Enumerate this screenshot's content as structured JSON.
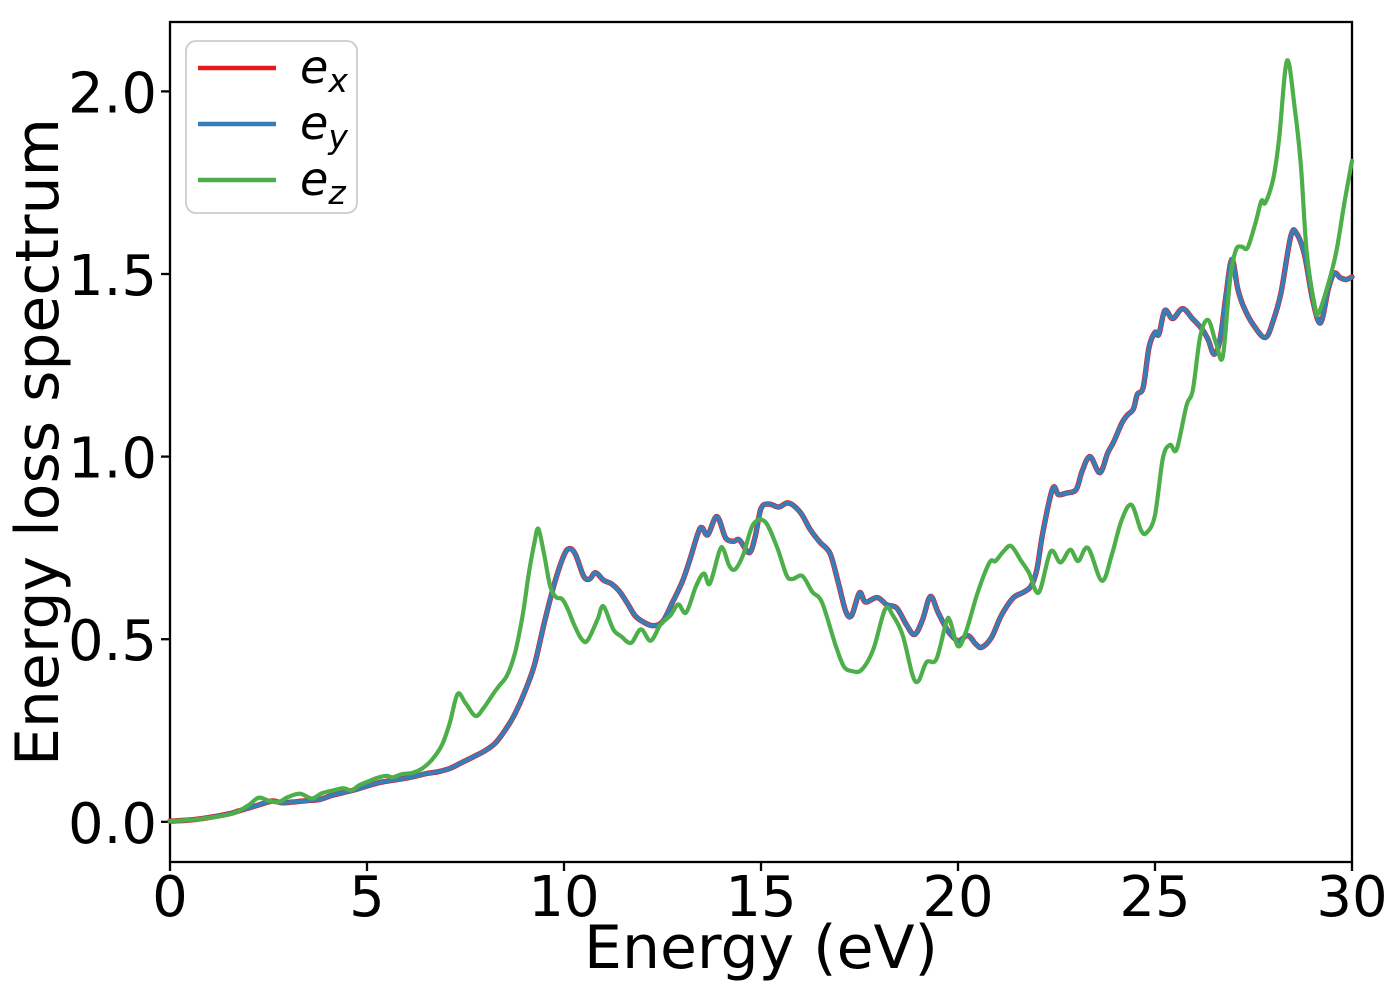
{
  "figure": {
    "background": "#ffffff",
    "legend_border_color": "#cccccc",
    "legend_background": "#ffffff",
    "axis_color": "#000000"
  },
  "chart_data": {
    "type": "line",
    "title": "",
    "xlabel": "Energy (eV)",
    "ylabel": "Energy loss spectrum",
    "xlim": [
      0,
      30
    ],
    "ylim": [
      -0.11,
      2.19
    ],
    "x_ticks": [
      0,
      5,
      10,
      15,
      20,
      25,
      30
    ],
    "x_tick_labels": [
      "0",
      "5",
      "10",
      "15",
      "20",
      "25",
      "30"
    ],
    "y_ticks": [
      0.0,
      0.5,
      1.0,
      1.5,
      2.0
    ],
    "y_tick_labels": [
      "0.0",
      "0.5",
      "1.0",
      "1.5",
      "2.0"
    ],
    "grid": false,
    "legend_position": "upper-left",
    "series": [
      {
        "name": "e_x",
        "label_base": "e",
        "label_sub": "x",
        "color": "#e41a1c",
        "points_same_as": "e_y",
        "note": "coincides with e_y; drawn first so it is hidden beneath the blue curve except tiny fringes at sharp peaks"
      },
      {
        "name": "e_y",
        "label_base": "e",
        "label_sub": "y",
        "color": "#377eb8",
        "points": [
          [
            0,
            0.002
          ],
          [
            0.5,
            0.005
          ],
          [
            1,
            0.012
          ],
          [
            1.5,
            0.022
          ],
          [
            1.75,
            0.03
          ],
          [
            2,
            0.038
          ],
          [
            2.3,
            0.048
          ],
          [
            2.6,
            0.057
          ],
          [
            2.85,
            0.052
          ],
          [
            3.1,
            0.054
          ],
          [
            3.5,
            0.058
          ],
          [
            3.8,
            0.061
          ],
          [
            4.1,
            0.072
          ],
          [
            4.4,
            0.08
          ],
          [
            4.7,
            0.088
          ],
          [
            5,
            0.098
          ],
          [
            5.3,
            0.107
          ],
          [
            5.6,
            0.113
          ],
          [
            5.9,
            0.118
          ],
          [
            6.2,
            0.124
          ],
          [
            6.5,
            0.132
          ],
          [
            6.8,
            0.137
          ],
          [
            7.1,
            0.146
          ],
          [
            7.4,
            0.162
          ],
          [
            7.7,
            0.178
          ],
          [
            8,
            0.195
          ],
          [
            8.25,
            0.215
          ],
          [
            8.5,
            0.25
          ],
          [
            8.75,
            0.295
          ],
          [
            9,
            0.355
          ],
          [
            9.25,
            0.43
          ],
          [
            9.5,
            0.545
          ],
          [
            9.75,
            0.65
          ],
          [
            10,
            0.73
          ],
          [
            10.15,
            0.748
          ],
          [
            10.3,
            0.73
          ],
          [
            10.5,
            0.672
          ],
          [
            10.65,
            0.665
          ],
          [
            10.8,
            0.682
          ],
          [
            11,
            0.662
          ],
          [
            11.2,
            0.652
          ],
          [
            11.4,
            0.632
          ],
          [
            11.6,
            0.6
          ],
          [
            11.8,
            0.565
          ],
          [
            12,
            0.548
          ],
          [
            12.25,
            0.537
          ],
          [
            12.5,
            0.548
          ],
          [
            12.75,
            0.6
          ],
          [
            13,
            0.657
          ],
          [
            13.2,
            0.72
          ],
          [
            13.4,
            0.79
          ],
          [
            13.5,
            0.806
          ],
          [
            13.65,
            0.786
          ],
          [
            13.88,
            0.836
          ],
          [
            14.1,
            0.778
          ],
          [
            14.3,
            0.768
          ],
          [
            14.45,
            0.772
          ],
          [
            14.7,
            0.737
          ],
          [
            14.85,
            0.78
          ],
          [
            15,
            0.858
          ],
          [
            15.2,
            0.87
          ],
          [
            15.45,
            0.862
          ],
          [
            15.7,
            0.873
          ],
          [
            16,
            0.847
          ],
          [
            16.25,
            0.8
          ],
          [
            16.5,
            0.765
          ],
          [
            16.75,
            0.735
          ],
          [
            16.95,
            0.66
          ],
          [
            17.15,
            0.577
          ],
          [
            17.3,
            0.565
          ],
          [
            17.5,
            0.627
          ],
          [
            17.65,
            0.602
          ],
          [
            17.95,
            0.614
          ],
          [
            18.2,
            0.594
          ],
          [
            18.45,
            0.585
          ],
          [
            18.7,
            0.538
          ],
          [
            18.9,
            0.513
          ],
          [
            19.1,
            0.553
          ],
          [
            19.3,
            0.617
          ],
          [
            19.5,
            0.572
          ],
          [
            19.75,
            0.522
          ],
          [
            20,
            0.496
          ],
          [
            20.25,
            0.51
          ],
          [
            20.45,
            0.487
          ],
          [
            20.6,
            0.478
          ],
          [
            20.85,
            0.505
          ],
          [
            21.1,
            0.565
          ],
          [
            21.4,
            0.613
          ],
          [
            21.65,
            0.628
          ],
          [
            21.85,
            0.645
          ],
          [
            22,
            0.69
          ],
          [
            22.15,
            0.79
          ],
          [
            22.4,
            0.912
          ],
          [
            22.55,
            0.896
          ],
          [
            22.75,
            0.9
          ],
          [
            23,
            0.91
          ],
          [
            23.15,
            0.96
          ],
          [
            23.35,
            1.0
          ],
          [
            23.6,
            0.956
          ],
          [
            23.8,
            1.01
          ],
          [
            23.95,
            1.04
          ],
          [
            24.16,
            1.092
          ],
          [
            24.3,
            1.114
          ],
          [
            24.45,
            1.13
          ],
          [
            24.55,
            1.17
          ],
          [
            24.7,
            1.19
          ],
          [
            24.85,
            1.3
          ],
          [
            25,
            1.34
          ],
          [
            25.1,
            1.335
          ],
          [
            25.25,
            1.4
          ],
          [
            25.45,
            1.378
          ],
          [
            25.7,
            1.405
          ],
          [
            25.95,
            1.378
          ],
          [
            26.2,
            1.348
          ],
          [
            26.35,
            1.32
          ],
          [
            26.5,
            1.28
          ],
          [
            26.65,
            1.32
          ],
          [
            26.8,
            1.44
          ],
          [
            26.95,
            1.54
          ],
          [
            27.1,
            1.46
          ],
          [
            27.25,
            1.41
          ],
          [
            27.5,
            1.36
          ],
          [
            27.8,
            1.326
          ],
          [
            28,
            1.372
          ],
          [
            28.2,
            1.45
          ],
          [
            28.45,
            1.605
          ],
          [
            28.6,
            1.61
          ],
          [
            28.8,
            1.55
          ],
          [
            29,
            1.43
          ],
          [
            29.2,
            1.366
          ],
          [
            29.4,
            1.46
          ],
          [
            29.55,
            1.502
          ],
          [
            29.7,
            1.49
          ],
          [
            29.85,
            1.485
          ],
          [
            30,
            1.492
          ]
        ]
      },
      {
        "name": "e_z",
        "label_base": "e",
        "label_sub": "z",
        "color": "#4daf4a",
        "points": [
          [
            0,
            0.002
          ],
          [
            0.5,
            0.005
          ],
          [
            1,
            0.011
          ],
          [
            1.5,
            0.02
          ],
          [
            1.75,
            0.03
          ],
          [
            2,
            0.046
          ],
          [
            2.25,
            0.066
          ],
          [
            2.5,
            0.058
          ],
          [
            2.75,
            0.054
          ],
          [
            3,
            0.068
          ],
          [
            3.3,
            0.077
          ],
          [
            3.6,
            0.064
          ],
          [
            3.85,
            0.078
          ],
          [
            4.1,
            0.085
          ],
          [
            4.4,
            0.092
          ],
          [
            4.6,
            0.086
          ],
          [
            4.8,
            0.1
          ],
          [
            5,
            0.109
          ],
          [
            5.25,
            0.12
          ],
          [
            5.5,
            0.126
          ],
          [
            5.65,
            0.122
          ],
          [
            5.9,
            0.131
          ],
          [
            6.15,
            0.134
          ],
          [
            6.4,
            0.146
          ],
          [
            6.65,
            0.17
          ],
          [
            6.9,
            0.21
          ],
          [
            7.1,
            0.27
          ],
          [
            7.3,
            0.35
          ],
          [
            7.5,
            0.325
          ],
          [
            7.75,
            0.29
          ],
          [
            7.95,
            0.31
          ],
          [
            8.2,
            0.35
          ],
          [
            8.35,
            0.372
          ],
          [
            8.55,
            0.4
          ],
          [
            8.75,
            0.46
          ],
          [
            8.95,
            0.565
          ],
          [
            9.1,
            0.675
          ],
          [
            9.25,
            0.765
          ],
          [
            9.35,
            0.802
          ],
          [
            9.5,
            0.73
          ],
          [
            9.65,
            0.645
          ],
          [
            9.8,
            0.615
          ],
          [
            9.95,
            0.61
          ],
          [
            10.1,
            0.582
          ],
          [
            10.25,
            0.541
          ],
          [
            10.45,
            0.5
          ],
          [
            10.6,
            0.497
          ],
          [
            10.85,
            0.554
          ],
          [
            11,
            0.59
          ],
          [
            11.25,
            0.527
          ],
          [
            11.45,
            0.508
          ],
          [
            11.7,
            0.49
          ],
          [
            11.95,
            0.527
          ],
          [
            12.2,
            0.496
          ],
          [
            12.45,
            0.54
          ],
          [
            12.7,
            0.565
          ],
          [
            12.9,
            0.595
          ],
          [
            13.1,
            0.573
          ],
          [
            13.35,
            0.645
          ],
          [
            13.55,
            0.68
          ],
          [
            13.7,
            0.652
          ],
          [
            13.95,
            0.743
          ],
          [
            14.05,
            0.745
          ],
          [
            14.2,
            0.7
          ],
          [
            14.35,
            0.692
          ],
          [
            14.55,
            0.732
          ],
          [
            14.8,
            0.814
          ],
          [
            15.1,
            0.822
          ],
          [
            15.4,
            0.754
          ],
          [
            15.65,
            0.675
          ],
          [
            15.8,
            0.665
          ],
          [
            16.05,
            0.673
          ],
          [
            16.3,
            0.63
          ],
          [
            16.55,
            0.6
          ],
          [
            16.9,
            0.481
          ],
          [
            17.1,
            0.426
          ],
          [
            17.3,
            0.413
          ],
          [
            17.55,
            0.416
          ],
          [
            17.85,
            0.472
          ],
          [
            18.15,
            0.582
          ],
          [
            18.35,
            0.565
          ],
          [
            18.6,
            0.51
          ],
          [
            18.85,
            0.4
          ],
          [
            19,
            0.386
          ],
          [
            19.2,
            0.437
          ],
          [
            19.45,
            0.445
          ],
          [
            19.7,
            0.546
          ],
          [
            19.8,
            0.55
          ],
          [
            20,
            0.481
          ],
          [
            20.2,
            0.52
          ],
          [
            20.5,
            0.628
          ],
          [
            20.8,
            0.71
          ],
          [
            20.95,
            0.714
          ],
          [
            21.15,
            0.74
          ],
          [
            21.35,
            0.755
          ],
          [
            21.6,
            0.715
          ],
          [
            21.8,
            0.682
          ],
          [
            22.05,
            0.628
          ],
          [
            22.35,
            0.74
          ],
          [
            22.6,
            0.71
          ],
          [
            22.85,
            0.745
          ],
          [
            23.05,
            0.714
          ],
          [
            23.3,
            0.75
          ],
          [
            23.65,
            0.66
          ],
          [
            23.9,
            0.73
          ],
          [
            24.15,
            0.825
          ],
          [
            24.4,
            0.868
          ],
          [
            24.65,
            0.797
          ],
          [
            24.8,
            0.793
          ],
          [
            25,
            0.84
          ],
          [
            25.2,
            0.996
          ],
          [
            25.38,
            1.032
          ],
          [
            25.55,
            1.02
          ],
          [
            25.8,
            1.14
          ],
          [
            25.96,
            1.182
          ],
          [
            26.15,
            1.33
          ],
          [
            26.35,
            1.374
          ],
          [
            26.55,
            1.31
          ],
          [
            26.72,
            1.274
          ],
          [
            26.9,
            1.48
          ],
          [
            27.05,
            1.565
          ],
          [
            27.2,
            1.575
          ],
          [
            27.35,
            1.572
          ],
          [
            27.55,
            1.64
          ],
          [
            27.7,
            1.7
          ],
          [
            27.8,
            1.695
          ],
          [
            28,
            1.76
          ],
          [
            28.15,
            1.87
          ],
          [
            28.35,
            2.084
          ],
          [
            28.55,
            1.95
          ],
          [
            28.7,
            1.8
          ],
          [
            28.85,
            1.56
          ],
          [
            29.05,
            1.415
          ],
          [
            29.15,
            1.392
          ],
          [
            29.4,
            1.474
          ],
          [
            29.6,
            1.56
          ],
          [
            29.8,
            1.69
          ],
          [
            30,
            1.81
          ]
        ]
      }
    ]
  }
}
